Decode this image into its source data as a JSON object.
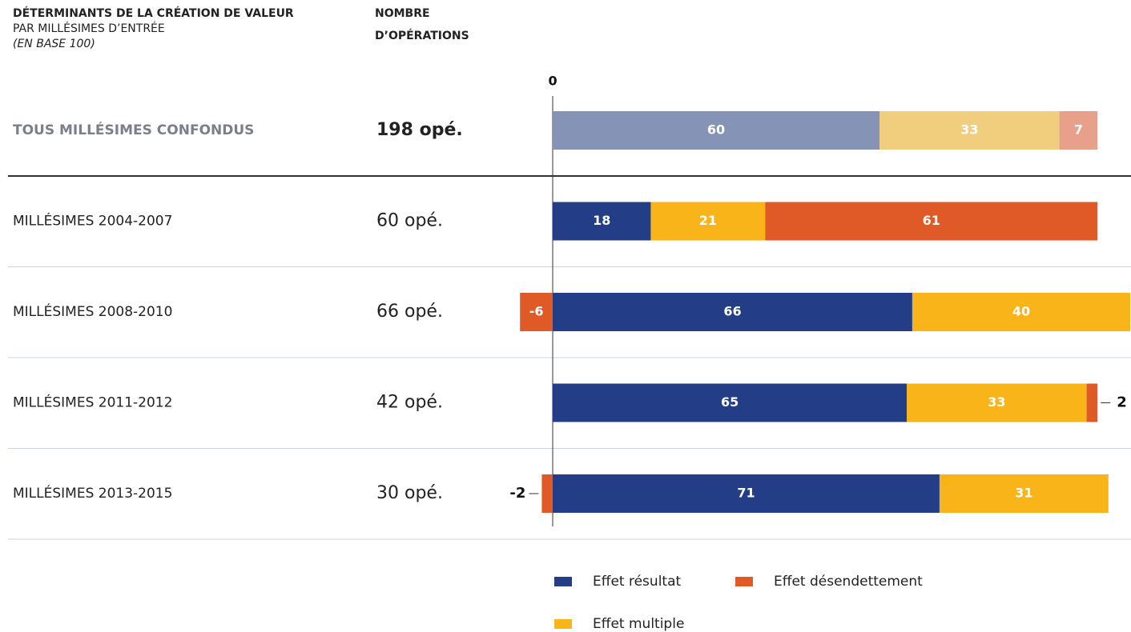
{
  "chart_data": {
    "type": "stacked-bar-horizontal",
    "title": "DÉTERMINANTS DE LA CRÉATION DE VALEUR",
    "subtitle": "PAR MILLÉSIMES D’ENTRÉE",
    "note": "(EN BASE 100)",
    "count_header": [
      "NOMBRE",
      "D’OPÉRATIONS"
    ],
    "categories": [
      "TOUS MILLÉSIMES CONFONDUS",
      "MILLÉSIMES 2004-2007",
      "MILLÉSIMES 2008-2010",
      "MILLÉSIMES 2011-2012",
      "MILLÉSIMES 2013-2015"
    ],
    "counts": [
      "198 opé.",
      "60 opé.",
      "66 opé.",
      "42 opé.",
      "30 opé."
    ],
    "series": [
      {
        "name": "Effet résultat",
        "color": "#233d86",
        "muted_color": "#8593b6",
        "values": [
          60,
          18,
          66,
          65,
          71
        ]
      },
      {
        "name": "Effet multiple",
        "color": "#f8b418",
        "muted_color": "#f1cd7e",
        "values": [
          33,
          21,
          40,
          33,
          31
        ]
      },
      {
        "name": "Effet désendettement",
        "color": "#e05a28",
        "muted_color": "#e8a08a",
        "values": [
          7,
          61,
          -6,
          2,
          -2
        ]
      }
    ],
    "xlim": [
      -10,
      106
    ],
    "xticks": [
      0
    ]
  }
}
